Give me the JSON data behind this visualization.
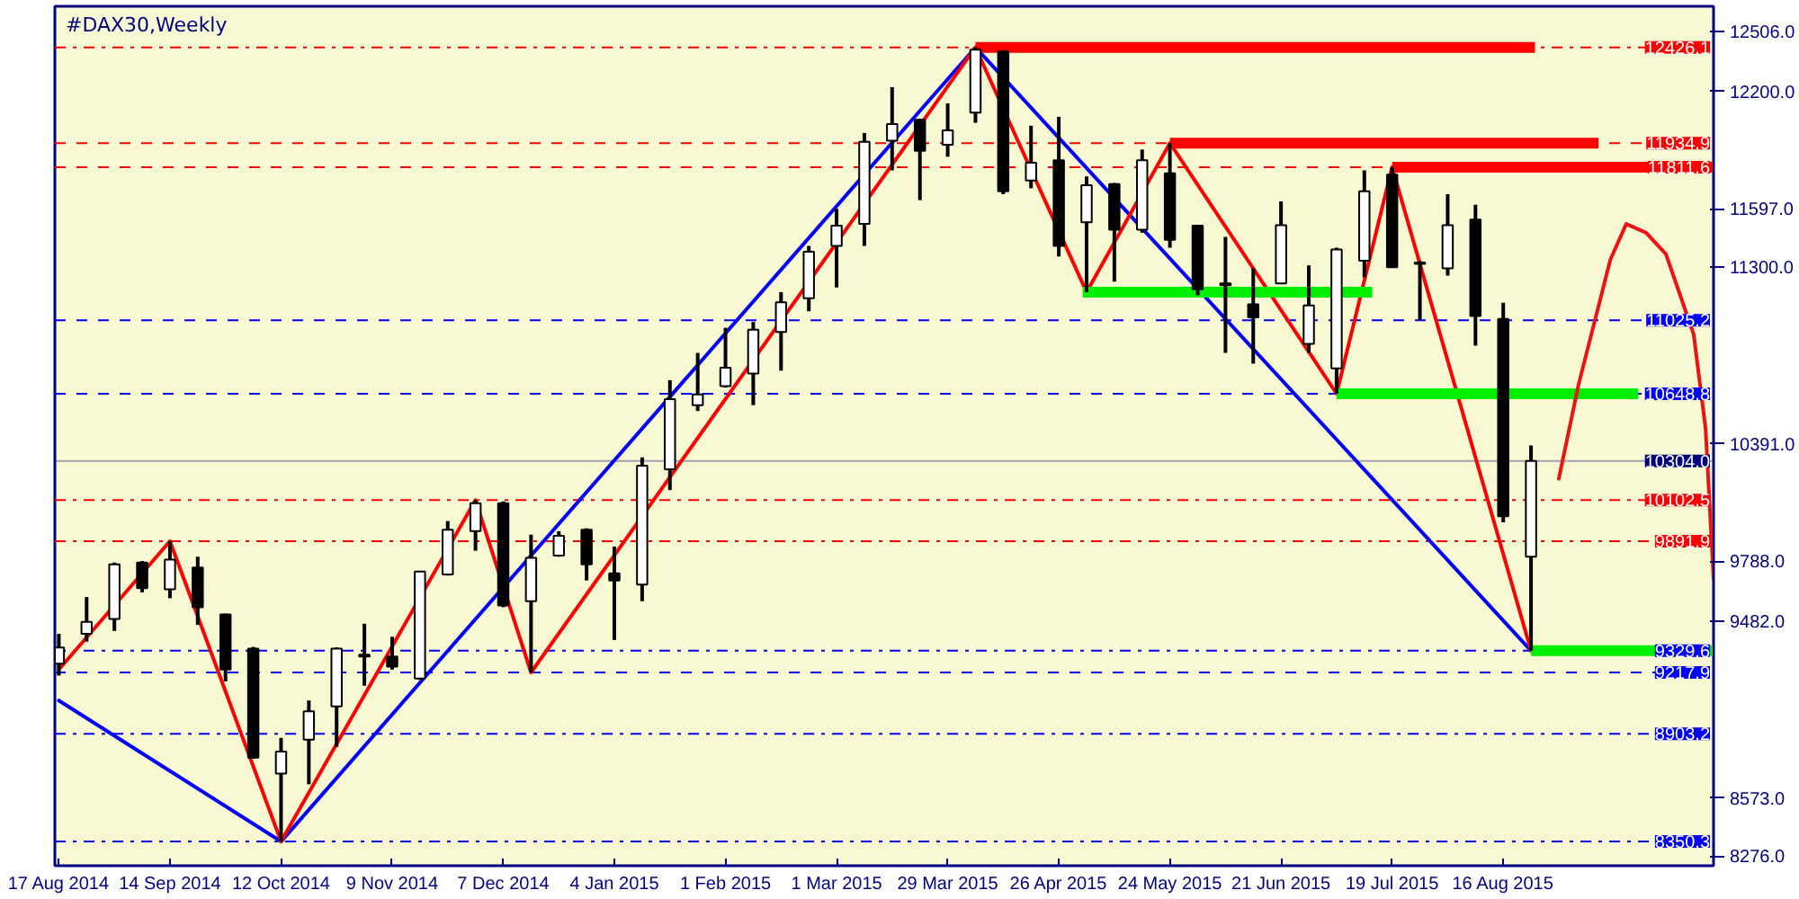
{
  "chart_data": {
    "type": "candlestick",
    "title": "#DAX30,Weekly",
    "x": [
      "2014-08-17",
      "2014-08-24",
      "2014-08-31",
      "2014-09-07",
      "2014-09-14",
      "2014-09-21",
      "2014-09-28",
      "2014-10-05",
      "2014-10-12",
      "2014-10-19",
      "2014-10-26",
      "2014-11-02",
      "2014-11-09",
      "2014-11-16",
      "2014-11-23",
      "2014-11-30",
      "2014-12-07",
      "2014-12-14",
      "2014-12-21",
      "2014-12-28",
      "2015-01-04",
      "2015-01-11",
      "2015-01-18",
      "2015-01-25",
      "2015-02-01",
      "2015-02-08",
      "2015-02-15",
      "2015-02-22",
      "2015-03-01",
      "2015-03-08",
      "2015-03-15",
      "2015-03-22",
      "2015-03-29",
      "2015-04-05",
      "2015-04-12",
      "2015-04-19",
      "2015-04-26",
      "2015-05-03",
      "2015-05-10",
      "2015-05-17",
      "2015-05-24",
      "2015-05-31",
      "2015-06-07",
      "2015-06-14",
      "2015-06-21",
      "2015-06-28",
      "2015-07-05",
      "2015-07-12",
      "2015-07-19",
      "2015-07-26",
      "2015-08-02",
      "2015-08-09",
      "2015-08-16",
      "2015-08-23"
    ],
    "ohlc": [
      [
        9263,
        9416,
        9202,
        9346
      ],
      [
        9416,
        9605,
        9376,
        9477
      ],
      [
        9492,
        9782,
        9431,
        9773
      ],
      [
        9782,
        9790,
        9629,
        9651
      ],
      [
        9645,
        9891.9,
        9599,
        9797
      ],
      [
        9757,
        9812,
        9462,
        9553
      ],
      [
        9516,
        9520,
        9172,
        9233
      ],
      [
        9340,
        9349,
        8775,
        8781
      ],
      [
        8699,
        8882,
        8350.3,
        8812
      ],
      [
        8873,
        9074,
        8644,
        9019
      ],
      [
        9044,
        9346,
        8836,
        9340
      ],
      [
        9309,
        9468,
        9150,
        9300
      ],
      [
        9300,
        9401,
        9233,
        9248
      ],
      [
        9187,
        9736,
        9180,
        9736
      ],
      [
        9721,
        9995,
        9715,
        9950
      ],
      [
        9943,
        10102.5,
        9843,
        10087
      ],
      [
        10087,
        10096,
        9553,
        9562
      ],
      [
        9584,
        9925,
        9217.9,
        9806
      ],
      [
        9818,
        9943,
        9812,
        9919
      ],
      [
        9950,
        9958,
        9690,
        9773
      ],
      [
        9727,
        9864,
        9385,
        9690
      ],
      [
        9669,
        10322,
        9584,
        10279
      ],
      [
        10261,
        10718,
        10154,
        10621
      ],
      [
        10590,
        10858,
        10560,
        10645
      ],
      [
        10688,
        10987,
        10680,
        10782
      ],
      [
        10752,
        11017,
        10590,
        10977
      ],
      [
        10965,
        11170,
        10767,
        11118
      ],
      [
        11139,
        11407,
        11072,
        11377
      ],
      [
        11407,
        11597,
        11194,
        11511
      ],
      [
        11520,
        11987,
        11407,
        11941
      ],
      [
        11947,
        12222,
        11795,
        12033
      ],
      [
        12054,
        12060,
        11642,
        11895
      ],
      [
        11926,
        12139,
        11865,
        12000
      ],
      [
        12091,
        12426.1,
        12039,
        12414
      ],
      [
        12405,
        12410,
        11673,
        11688
      ],
      [
        11743,
        12024,
        11703,
        11834
      ],
      [
        11847,
        12069,
        11353,
        11407
      ],
      [
        11529,
        11764,
        11170,
        11719
      ],
      [
        11725,
        11730,
        11224,
        11490
      ],
      [
        11490,
        11902,
        11475,
        11847
      ],
      [
        11780,
        11934.9,
        11398,
        11438
      ],
      [
        11511,
        11515,
        11154,
        11185
      ],
      [
        11206,
        11453,
        10858,
        11215
      ],
      [
        11108,
        11292,
        10803,
        11041
      ],
      [
        11215,
        11636,
        11215,
        11514
      ],
      [
        10904,
        11307,
        10858,
        11102
      ],
      [
        10779,
        11398,
        10648.8,
        11389
      ],
      [
        11331,
        11795,
        11246,
        11688
      ],
      [
        11773,
        11811.6,
        11298,
        11298
      ],
      [
        11322,
        11330,
        11026,
        11315
      ],
      [
        11292,
        11673,
        11255,
        11514
      ],
      [
        11542,
        11618,
        10895,
        11048
      ],
      [
        11032,
        11115,
        9989,
        10020
      ],
      [
        9812,
        10383,
        9329.6,
        10304.0
      ]
    ],
    "series": [
      {
        "type": "line",
        "color": "#0000ff",
        "x": [
          "2014-08-17",
          "2014-10-12",
          "2015-04-05",
          "2015-08-23"
        ],
        "values": [
          9074,
          8350.3,
          12426.1,
          9329.6
        ]
      },
      {
        "type": "line",
        "color": "#ff0000",
        "x": [
          "2014-08-17",
          "2014-09-14",
          "2014-10-12",
          "2014-11-30",
          "2014-12-14",
          "2015-04-05",
          "2015-05-03",
          "2015-05-24",
          "2015-07-05",
          "2015-07-19",
          "2015-08-23"
        ],
        "values": [
          9233,
          9891.9,
          8350.3,
          10102.5,
          9217.9,
          12426.1,
          11170,
          11934.9,
          10648.8,
          11811.6,
          9329.6
        ]
      },
      {
        "type": "line",
        "color": "#ff0000",
        "x": [
          "2015-04-05",
          "2015-08-24"
        ],
        "values": [
          12426.1,
          12426.1
        ]
      },
      {
        "type": "line",
        "color": "#ff0000",
        "x": [
          "2015-05-24",
          "2015-09-09"
        ],
        "values": [
          11934.9,
          11934.9
        ]
      },
      {
        "type": "line",
        "color": "#ff0000",
        "x": [
          "2015-07-19",
          "2015-10-08"
        ],
        "values": [
          11811.6,
          11811.6
        ]
      },
      {
        "type": "line",
        "color": "#00ee00",
        "x": [
          "2015-05-02",
          "2015-07-14"
        ],
        "values": [
          11170,
          11170
        ]
      },
      {
        "type": "line",
        "color": "#00ee00",
        "x": [
          "2015-07-05",
          "2015-09-19"
        ],
        "values": [
          10648.8,
          10648.8
        ]
      },
      {
        "type": "line",
        "color": "#00ee00",
        "x": [
          "2015-08-23",
          "2015-10-08"
        ],
        "values": [
          9329.6,
          9329.6
        ]
      },
      {
        "type": "line",
        "color": "#ee1111",
        "x": [
          "2015-08-30",
          "2015-09-04",
          "2015-09-12",
          "2015-09-16",
          "2015-09-21",
          "2015-09-26",
          "2015-10-03",
          "2015-10-06",
          "2015-10-08"
        ],
        "values": [
          10212,
          10697,
          11337,
          11520,
          11475,
          11365,
          10953,
          10468,
          9700
        ]
      }
    ],
    "ref_lines": [
      {
        "axis": "y",
        "value": 12426.1,
        "label": "12426.1",
        "color": "#ff0000",
        "line_style": "dashdot"
      },
      {
        "axis": "y",
        "value": 11934.9,
        "label": "11934.9",
        "color": "#ff0000",
        "line_style": "dashed"
      },
      {
        "axis": "y",
        "value": 11811.6,
        "label": "11811.6",
        "color": "#ff0000",
        "line_style": "dashed"
      },
      {
        "axis": "y",
        "value": 11025.2,
        "label": "11025.2",
        "color": "#0000ff",
        "line_style": "dashed"
      },
      {
        "axis": "y",
        "value": 10648.8,
        "label": "10648.8",
        "color": "#0000ff",
        "line_style": "dashed"
      },
      {
        "axis": "y",
        "value": 10304.0,
        "label": "10304.0",
        "color": "#000080",
        "line_style": "solid"
      },
      {
        "axis": "y",
        "value": 10102.5,
        "label": "10102.5",
        "color": "#ff0000",
        "line_style": "dashdot"
      },
      {
        "axis": "y",
        "value": 9891.9,
        "label": "9891.9",
        "color": "#ff0000",
        "line_style": "dashdot"
      },
      {
        "axis": "y",
        "value": 9329.6,
        "label": "9329.6",
        "color": "#0000ff",
        "line_style": "dashdot"
      },
      {
        "axis": "y",
        "value": 9217.9,
        "label": "9217.9",
        "color": "#0000ff",
        "line_style": "dashed"
      },
      {
        "axis": "y",
        "value": 8903.2,
        "label": "8903.2",
        "color": "#0000ff",
        "line_style": "dashdot"
      },
      {
        "axis": "y",
        "value": 8350.3,
        "label": "8350.3",
        "color": "#0000ff",
        "line_style": "dashdot"
      }
    ],
    "xlim": [
      "2014-08-16",
      "2015-10-08"
    ],
    "ylim": [
      8226,
      12637
    ],
    "xticks": [
      {
        "value": "2014-08-17",
        "label": "17 Aug 2014"
      },
      {
        "value": "2014-09-14",
        "label": "14 Sep 2014"
      },
      {
        "value": "2014-10-12",
        "label": "12 Oct 2014"
      },
      {
        "value": "2014-11-09",
        "label": "9 Nov 2014"
      },
      {
        "value": "2014-12-07",
        "label": "7 Dec 2014"
      },
      {
        "value": "2015-01-04",
        "label": "4 Jan 2015"
      },
      {
        "value": "2015-02-01",
        "label": "1 Feb 2015"
      },
      {
        "value": "2015-03-01",
        "label": "1 Mar 2015"
      },
      {
        "value": "2015-03-29",
        "label": "29 Mar 2015"
      },
      {
        "value": "2015-04-26",
        "label": "26 Apr 2015"
      },
      {
        "value": "2015-05-24",
        "label": "24 May 2015"
      },
      {
        "value": "2015-06-21",
        "label": "21 Jun 2015"
      },
      {
        "value": "2015-07-19",
        "label": "19 Jul 2015"
      },
      {
        "value": "2015-08-16",
        "label": "16 Aug 2015"
      }
    ],
    "yticks": [
      {
        "value": 12506,
        "label": "12506.0"
      },
      {
        "value": 12200,
        "label": "12200.0"
      },
      {
        "value": 11597,
        "label": "11597.0"
      },
      {
        "value": 11300,
        "label": "11300.0"
      },
      {
        "value": 10391,
        "label": "10391.0"
      },
      {
        "value": 9788,
        "label": "9788.0"
      },
      {
        "value": 9482,
        "label": "9482.0"
      },
      {
        "value": 8573,
        "label": "8573.0"
      },
      {
        "value": 8276,
        "label": "8276.0"
      }
    ]
  }
}
